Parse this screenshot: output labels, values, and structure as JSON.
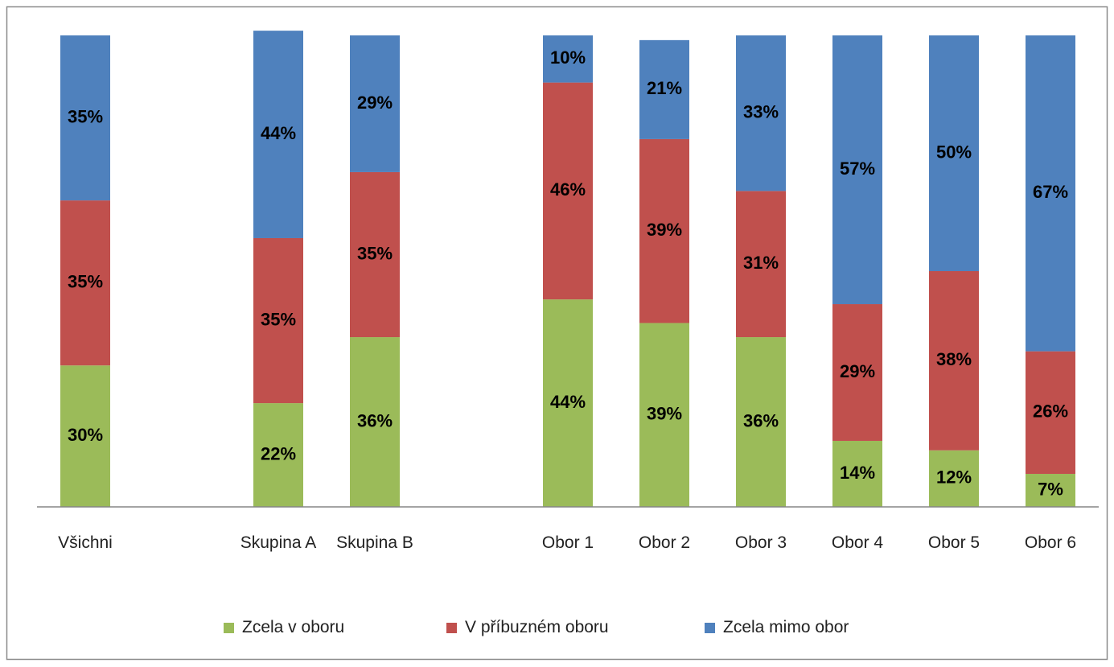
{
  "chart_data": {
    "type": "stacked_bar",
    "categories": [
      "Všichni",
      null,
      "Skupina A",
      "Skupina B",
      null,
      "Obor 1",
      "Obor 2",
      "Obor 3",
      "Obor 4",
      "Obor 5",
      "Obor 6"
    ],
    "ylim": [
      0,
      100
    ],
    "legend": "bottom",
    "series": [
      {
        "name": "Zcela v oboru",
        "color": "#9bbb59",
        "values": [
          30,
          null,
          22,
          36,
          null,
          44,
          39,
          36,
          14,
          12,
          7
        ],
        "value_labels": [
          "30%",
          null,
          "22%",
          "36%",
          null,
          "44%",
          "39%",
          "36%",
          "14%",
          "12%",
          "7%"
        ]
      },
      {
        "name": "V příbuzném oboru",
        "color": "#c0504d",
        "values": [
          35,
          null,
          35,
          35,
          null,
          46,
          39,
          31,
          29,
          38,
          26
        ],
        "value_labels": [
          "35%",
          null,
          "35%",
          "35%",
          null,
          "46%",
          "39%",
          "31%",
          "29%",
          "38%",
          "26%"
        ]
      },
      {
        "name": "Zcela mimo obor",
        "color": "#4f81bd",
        "values": [
          35,
          null,
          44,
          29,
          null,
          10,
          21,
          33,
          57,
          50,
          67
        ],
        "value_labels": [
          "35%",
          null,
          "44%",
          "29%",
          null,
          "10%",
          "21%",
          "33%",
          "57%",
          "50%",
          "67%"
        ]
      }
    ]
  }
}
